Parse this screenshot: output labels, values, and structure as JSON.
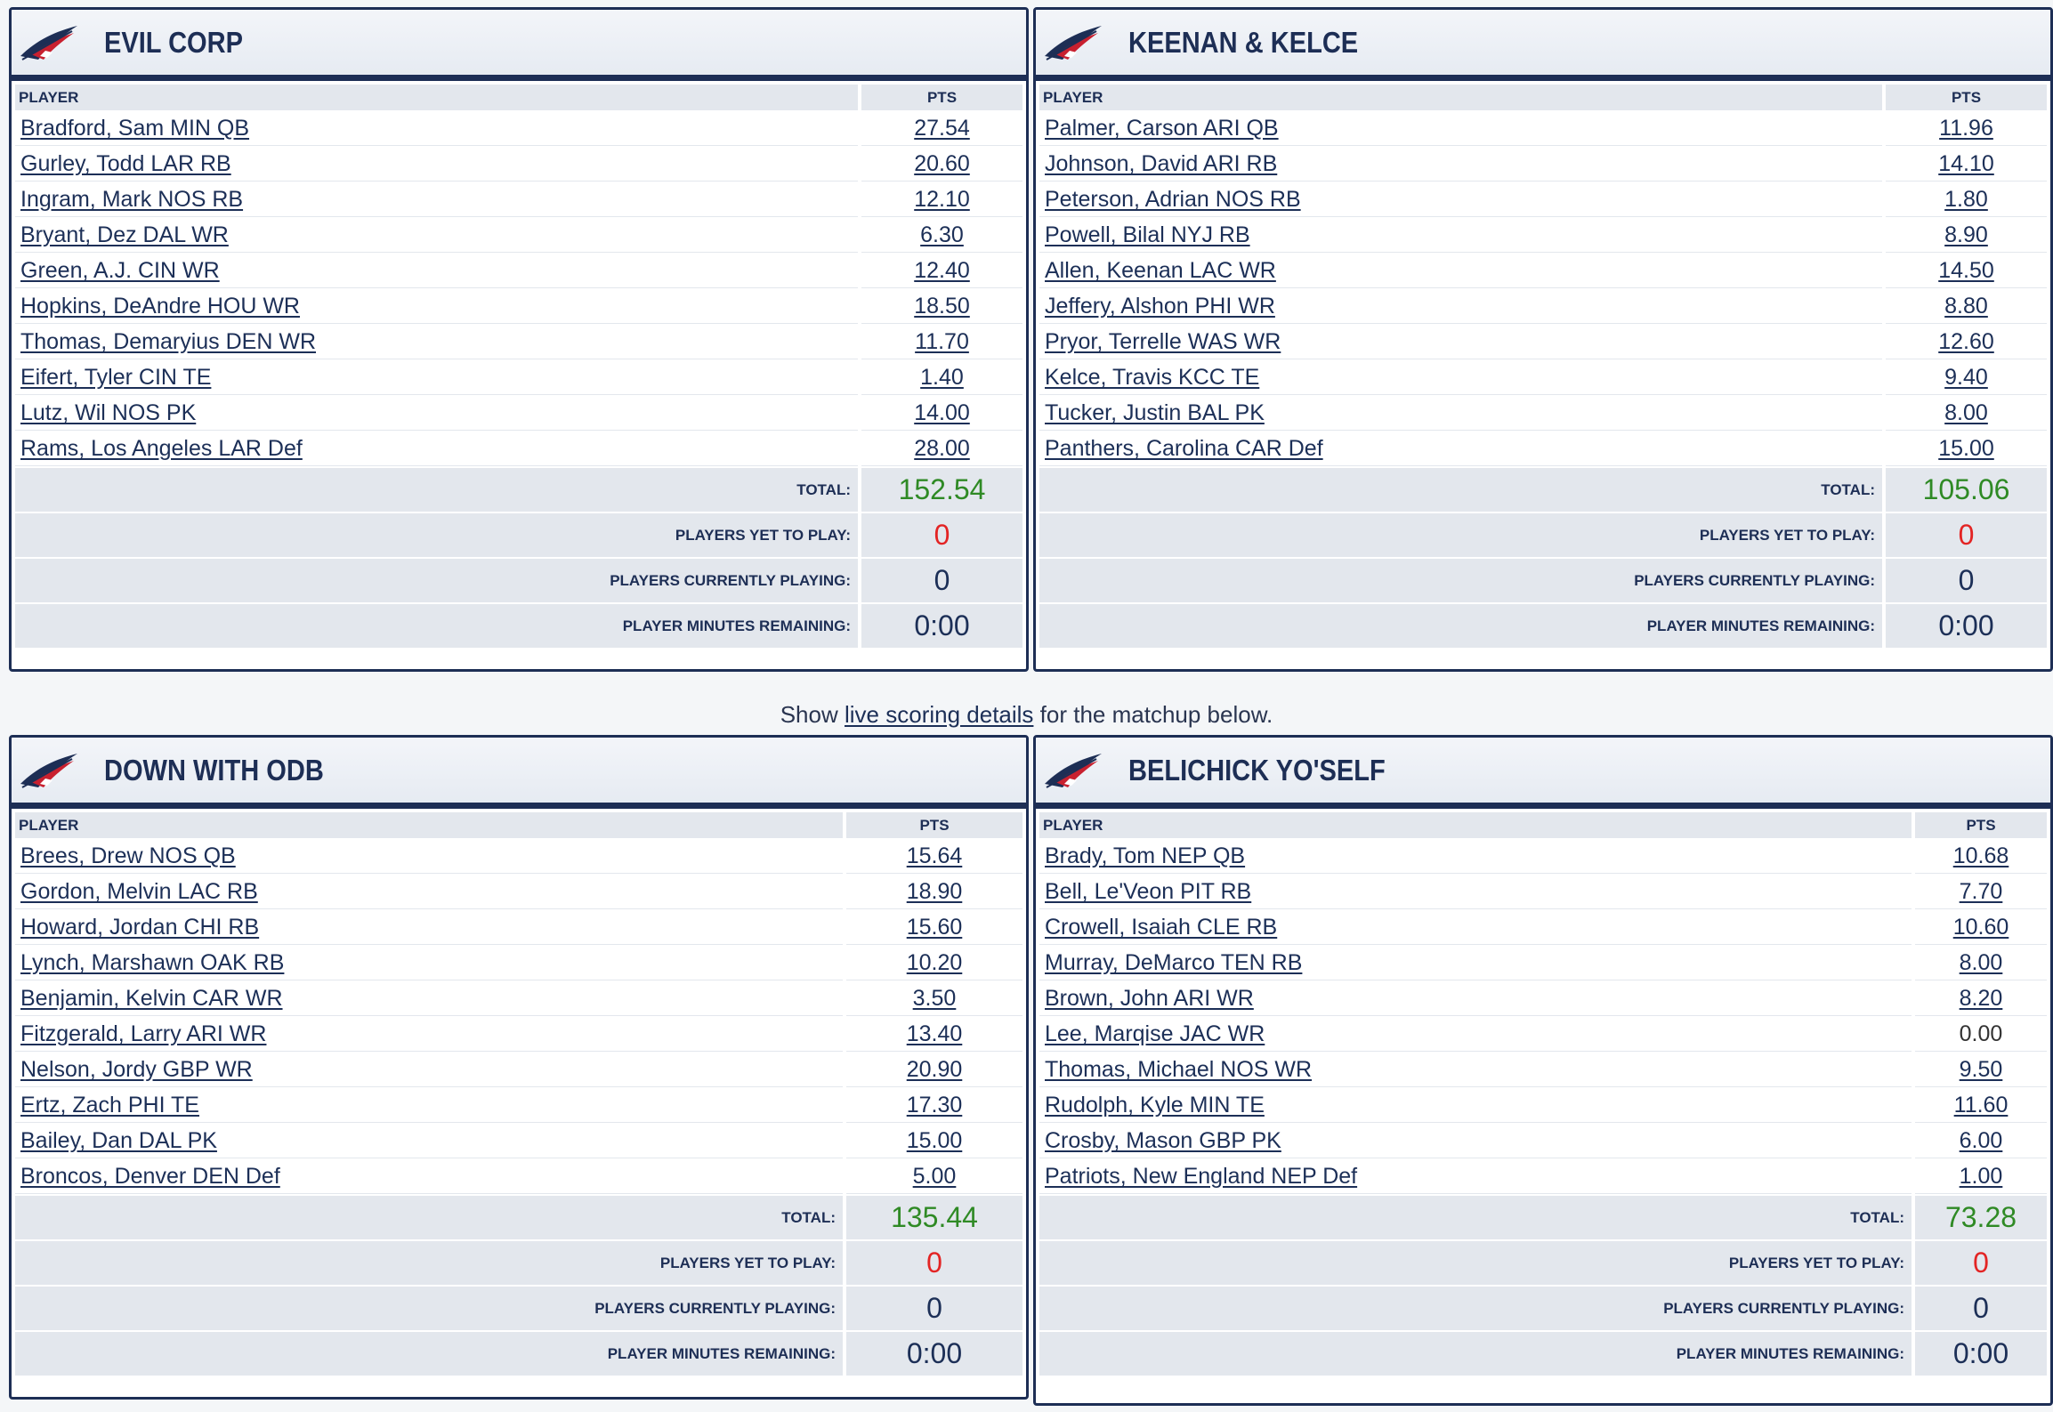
{
  "teams": [
    {
      "name": "EVIL CORP",
      "header_player": "PLAYER",
      "header_pts": "PTS",
      "players": [
        {
          "name": "Bradford, Sam MIN QB",
          "pts": "27.54"
        },
        {
          "name": "Gurley, Todd LAR RB",
          "pts": "20.60"
        },
        {
          "name": "Ingram, Mark NOS RB",
          "pts": "12.10"
        },
        {
          "name": "Bryant, Dez DAL WR",
          "pts": "6.30"
        },
        {
          "name": "Green, A.J. CIN WR",
          "pts": "12.40"
        },
        {
          "name": "Hopkins, DeAndre HOU WR",
          "pts": "18.50"
        },
        {
          "name": "Thomas, Demaryius DEN WR",
          "pts": "11.70"
        },
        {
          "name": "Eifert, Tyler CIN TE",
          "pts": "1.40"
        },
        {
          "name": "Lutz, Wil NOS PK",
          "pts": "14.00"
        },
        {
          "name": "Rams, Los Angeles LAR Def",
          "pts": "28.00"
        }
      ],
      "total_label": "TOTAL:",
      "total": "152.54",
      "yet_label": "PLAYERS YET TO PLAY:",
      "yet": "0",
      "current_label": "PLAYERS CURRENTLY PLAYING:",
      "current": "0",
      "minutes_label": "PLAYER MINUTES REMAINING:",
      "minutes": "0:00"
    },
    {
      "name": "KEENAN & KELCE",
      "header_player": "PLAYER",
      "header_pts": "PTS",
      "players": [
        {
          "name": "Palmer, Carson ARI QB",
          "pts": "11.96"
        },
        {
          "name": "Johnson, David ARI RB",
          "pts": "14.10"
        },
        {
          "name": "Peterson, Adrian NOS RB",
          "pts": "1.80"
        },
        {
          "name": "Powell, Bilal NYJ RB",
          "pts": "8.90"
        },
        {
          "name": "Allen, Keenan LAC WR",
          "pts": "14.50"
        },
        {
          "name": "Jeffery, Alshon PHI WR",
          "pts": "8.80"
        },
        {
          "name": "Pryor, Terrelle WAS WR",
          "pts": "12.60"
        },
        {
          "name": "Kelce, Travis KCC TE",
          "pts": "9.40"
        },
        {
          "name": "Tucker, Justin BAL PK",
          "pts": "8.00"
        },
        {
          "name": "Panthers, Carolina CAR Def",
          "pts": "15.00"
        }
      ],
      "total_label": "TOTAL:",
      "total": "105.06",
      "yet_label": "PLAYERS YET TO PLAY:",
      "yet": "0",
      "current_label": "PLAYERS CURRENTLY PLAYING:",
      "current": "0",
      "minutes_label": "PLAYER MINUTES REMAINING:",
      "minutes": "0:00"
    },
    {
      "name": "DOWN WITH ODB",
      "header_player": "PLAYER",
      "header_pts": "PTS",
      "players": [
        {
          "name": "Brees, Drew NOS QB",
          "pts": "15.64"
        },
        {
          "name": "Gordon, Melvin LAC RB",
          "pts": "18.90"
        },
        {
          "name": "Howard, Jordan CHI RB",
          "pts": "15.60"
        },
        {
          "name": "Lynch, Marshawn OAK RB",
          "pts": "10.20"
        },
        {
          "name": "Benjamin, Kelvin CAR WR",
          "pts": "3.50"
        },
        {
          "name": "Fitzgerald, Larry ARI WR",
          "pts": "13.40"
        },
        {
          "name": "Nelson, Jordy GBP WR",
          "pts": "20.90"
        },
        {
          "name": "Ertz, Zach PHI TE",
          "pts": "17.30"
        },
        {
          "name": "Bailey, Dan DAL PK",
          "pts": "15.00"
        },
        {
          "name": "Broncos, Denver DEN Def",
          "pts": "5.00"
        }
      ],
      "total_label": "TOTAL:",
      "total": "135.44",
      "yet_label": "PLAYERS YET TO PLAY:",
      "yet": "0",
      "current_label": "PLAYERS CURRENTLY PLAYING:",
      "current": "0",
      "minutes_label": "PLAYER MINUTES REMAINING:",
      "minutes": "0:00"
    },
    {
      "name": "BELICHICK YO'SELF",
      "header_player": "PLAYER",
      "header_pts": "PTS",
      "players": [
        {
          "name": "Brady, Tom NEP QB",
          "pts": "10.68"
        },
        {
          "name": "Bell, Le'Veon PIT RB",
          "pts": "7.70"
        },
        {
          "name": "Crowell, Isaiah CLE RB",
          "pts": "10.60"
        },
        {
          "name": "Murray, DeMarco TEN RB",
          "pts": "8.00"
        },
        {
          "name": "Brown, John ARI WR",
          "pts": "8.20"
        },
        {
          "name": "Lee, Marqise JAC WR",
          "pts": "0.00"
        },
        {
          "name": "Thomas, Michael NOS WR",
          "pts": "9.50"
        },
        {
          "name": "Rudolph, Kyle MIN TE",
          "pts": "11.60"
        },
        {
          "name": "Crosby, Mason GBP PK",
          "pts": "6.00"
        },
        {
          "name": "Patriots, New England NEP Def",
          "pts": "1.00"
        }
      ],
      "total_label": "TOTAL:",
      "total": "73.28",
      "yet_label": "PLAYERS YET TO PLAY:",
      "yet": "0",
      "current_label": "PLAYERS CURRENTLY PLAYING:",
      "current": "0",
      "minutes_label": "PLAYER MINUTES REMAINING:",
      "minutes": "0:00"
    }
  ],
  "notice": {
    "prefix": "Show",
    "link": "live scoring details",
    "suffix": "for the matchup below."
  },
  "icon": "team-logo-icon",
  "colors": {
    "navy": "#1d2e55",
    "total_green": "#2f8a25",
    "yet_red": "#e32424"
  }
}
